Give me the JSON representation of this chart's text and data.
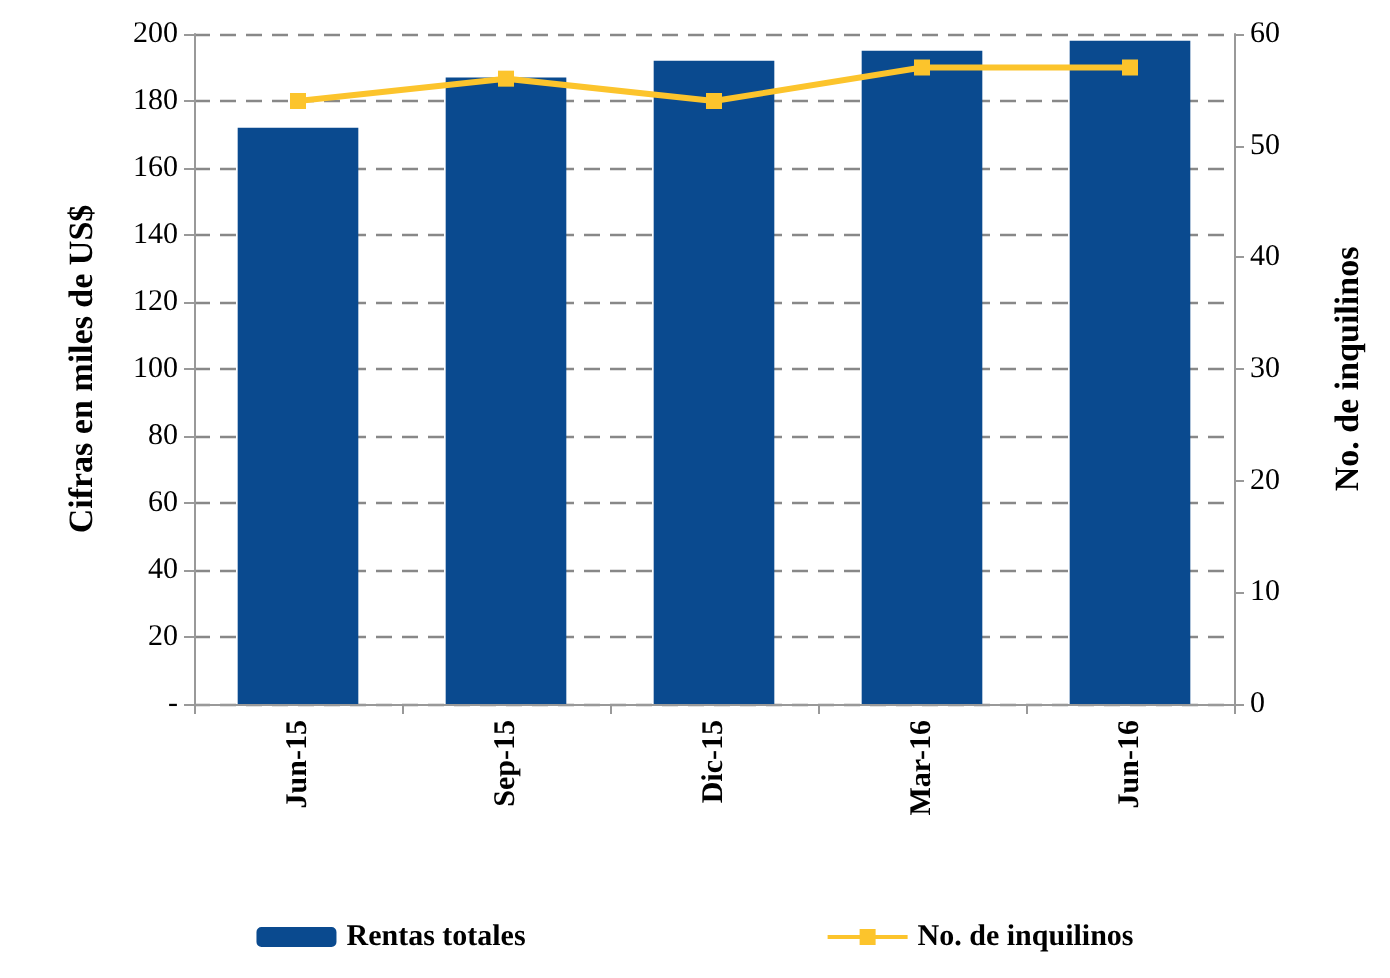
{
  "chart_data": {
    "type": "bar",
    "ylabel": "Cifras en miles de US$",
    "y2label": "No. de inquilinos",
    "categories": [
      "Jun-15",
      "Sep-15",
      "Dic-15",
      "Mar-16",
      "Jun-16"
    ],
    "series": [
      {
        "name": "Rentas totales",
        "color": "#0a4a8f",
        "values": [
          172,
          187,
          192,
          195,
          198
        ]
      },
      {
        "name": "No. de inquilinos",
        "type": "line",
        "axis": "y2",
        "color": "#fcc42c",
        "marker": "square",
        "values": [
          54,
          56,
          54,
          57,
          57
        ]
      }
    ],
    "ylim": [
      0,
      200
    ],
    "yticks": [
      {
        "value": 0,
        "label": "-"
      },
      20,
      40,
      60,
      80,
      100,
      120,
      140,
      160,
      180,
      200
    ],
    "y2lim": [
      0,
      60
    ],
    "y2ticks": [
      0,
      10,
      20,
      30,
      40,
      50,
      60
    ],
    "grid": "y",
    "legend": "bottom"
  }
}
